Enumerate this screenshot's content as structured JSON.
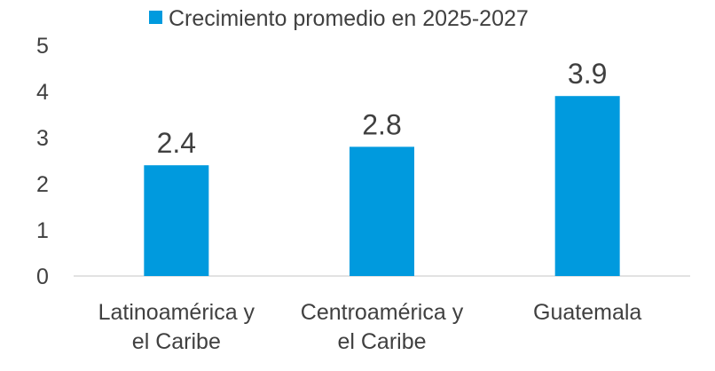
{
  "chart_data": {
    "type": "bar",
    "categories": [
      [
        "Latinoamérica y",
        "el Caribe"
      ],
      [
        "Centroamérica y",
        "el Caribe"
      ],
      [
        "Guatemala"
      ]
    ],
    "series": [
      {
        "name": "Crecimiento promedio en 2025-2027",
        "values": [
          2.4,
          2.8,
          3.9
        ],
        "color": "#009ADE"
      }
    ],
    "data_labels": [
      "2.4",
      "2.8",
      "3.9"
    ],
    "yticks": [
      "0",
      "1",
      "2",
      "3",
      "4",
      "5"
    ],
    "ylim": [
      0,
      5
    ],
    "grid": false,
    "legend_position": "top"
  }
}
